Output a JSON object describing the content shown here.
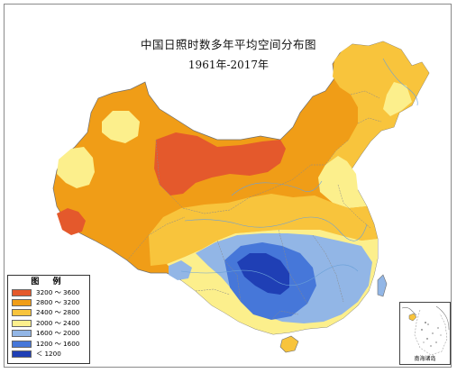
{
  "map": {
    "title": "中国日照时数多年平均空间分布图",
    "subtitle": "1961年-2017年"
  },
  "legend": {
    "title": "图 例",
    "items": [
      {
        "label": "3200 ～ 3600",
        "color": "#e4592c"
      },
      {
        "label": "2800 ～ 3200",
        "color": "#f09d17"
      },
      {
        "label": "2400 ～ 2800",
        "color": "#f8c43c"
      },
      {
        "label": "2000 ～ 2400",
        "color": "#fcef8c"
      },
      {
        "label": "1600 ～ 2000",
        "color": "#92b6e6"
      },
      {
        "label": "1200 ～ 1600",
        "color": "#4677d9"
      },
      {
        "label": "＜ 1200",
        "color": "#1f3fb5"
      }
    ]
  },
  "inset": {
    "label": "南海诸岛"
  }
}
